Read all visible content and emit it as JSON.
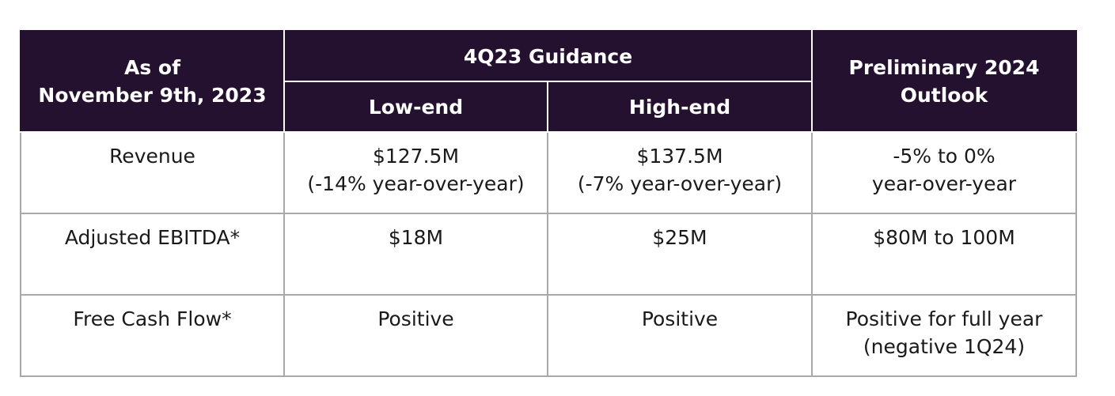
{
  "header": {
    "as_of_line1": "As of",
    "as_of_line2": "November 9th, 2023",
    "guidance_group": "4Q23 Guidance",
    "low_end": "Low-end",
    "high_end": "High-end",
    "outlook_line1": "Preliminary 2024",
    "outlook_line2": "Outlook"
  },
  "rows": [
    {
      "label": "Revenue",
      "low_line1": "$127.5M",
      "low_line2": "(-14% year-over-year)",
      "high_line1": "$137.5M",
      "high_line2": "(-7% year-over-year)",
      "outlook_line1": "-5% to 0%",
      "outlook_line2": "year-over-year"
    },
    {
      "label": "Adjusted EBITDA*",
      "low_line1": "$18M",
      "low_line2": "",
      "high_line1": "$25M",
      "high_line2": "",
      "outlook_line1": "$80M to 100M",
      "outlook_line2": ""
    },
    {
      "label": "Free Cash Flow*",
      "low_line1": "Positive",
      "low_line2": "",
      "high_line1": "Positive",
      "high_line2": "",
      "outlook_line1": "Positive for full year",
      "outlook_line2": "(negative 1Q24)"
    }
  ],
  "colors": {
    "header_bg": "#24112f",
    "header_text": "#ffffff",
    "body_text": "#1a1a1a",
    "grid_line": "#a9a9a9"
  }
}
